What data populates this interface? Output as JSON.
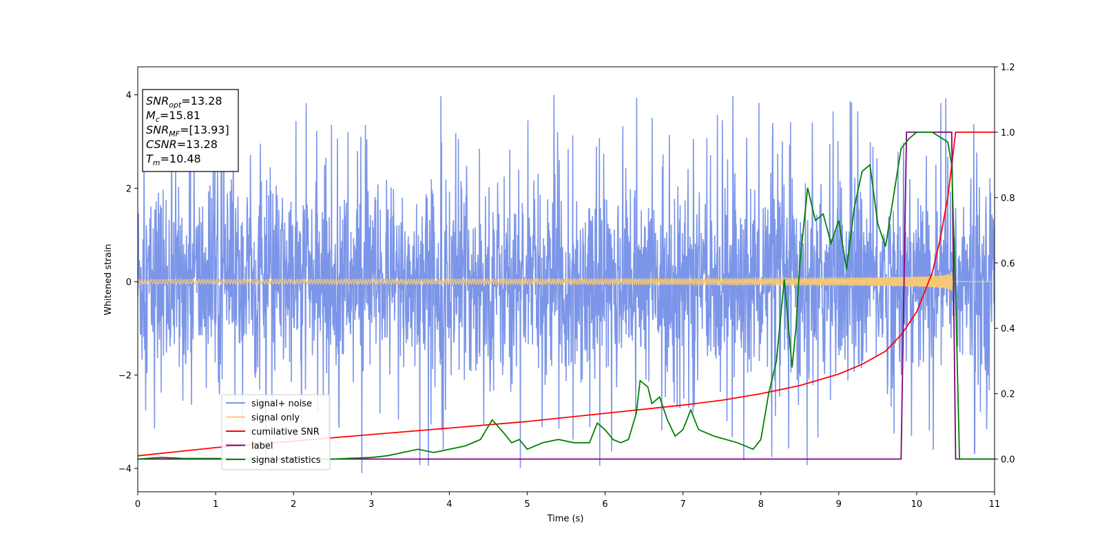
{
  "chart_data": {
    "type": "line",
    "xlabel": "Time (s)",
    "ylabel": "Whitened strain",
    "xlim": [
      0,
      11
    ],
    "ylim": [
      -4.5,
      4.6
    ],
    "y2lim": [
      -0.1,
      1.2
    ],
    "xticks": [
      0,
      1,
      2,
      3,
      4,
      5,
      6,
      7,
      8,
      9,
      10,
      11
    ],
    "yticks": [
      -4,
      -2,
      0,
      2,
      4
    ],
    "y2ticks": [
      "0.0",
      "0.2",
      "0.4",
      "0.6",
      "0.8",
      "1.0",
      "1.2"
    ],
    "grid": false,
    "legend_position": "lower-left",
    "info_box": {
      "lines": [
        {
          "sym": "SNR",
          "sub": "opt",
          "text": "=13.28"
        },
        {
          "sym": "M",
          "sub": "c",
          "text": "=15.81"
        },
        {
          "sym": "SNR",
          "sub": "MF",
          "text": "=[13.93]"
        },
        {
          "sym": "CSNR",
          "sub": "",
          "text": "=13.28"
        },
        {
          "sym": "T",
          "sub": "m",
          "text": "=10.48"
        }
      ]
    },
    "series": [
      {
        "name": "signal+ noise",
        "color": "#7b95e8",
        "axis": "left",
        "kind": "noise",
        "amplitude": 3.9
      },
      {
        "name": "signal only",
        "color": "#f5c878",
        "axis": "left",
        "kind": "chirp",
        "merger_time": 10.48
      },
      {
        "name": "cumilative SNR",
        "color": "#ff0000",
        "axis": "right",
        "x": [
          0,
          1,
          2,
          3,
          4,
          5,
          6,
          7,
          7.5,
          8,
          8.5,
          9,
          9.3,
          9.6,
          9.8,
          10.0,
          10.2,
          10.3,
          10.4,
          10.45,
          10.5,
          11
        ],
        "y": [
          0.01,
          0.035,
          0.055,
          0.075,
          0.095,
          0.115,
          0.14,
          0.165,
          0.18,
          0.2,
          0.225,
          0.26,
          0.29,
          0.33,
          0.38,
          0.45,
          0.57,
          0.67,
          0.8,
          0.9,
          1.0,
          1.0
        ]
      },
      {
        "name": "label",
        "color": "#800080",
        "axis": "right",
        "x": [
          0,
          9.8,
          9.87,
          10.45,
          10.5,
          11
        ],
        "y": [
          0,
          0,
          1,
          1,
          0,
          0
        ]
      },
      {
        "name": "signal statistics",
        "color": "#008000",
        "axis": "right",
        "x": [
          0,
          0.3,
          0.6,
          1,
          1.5,
          2,
          2.5,
          2.8,
          3,
          3.2,
          3.4,
          3.6,
          3.8,
          4,
          4.2,
          4.4,
          4.5,
          4.55,
          4.7,
          4.8,
          4.9,
          5,
          5.2,
          5.4,
          5.6,
          5.8,
          5.9,
          6,
          6.1,
          6.2,
          6.3,
          6.4,
          6.45,
          6.55,
          6.6,
          6.7,
          6.8,
          6.9,
          7,
          7.1,
          7.2,
          7.4,
          7.7,
          7.9,
          8,
          8.1,
          8.2,
          8.3,
          8.4,
          8.45,
          8.5,
          8.6,
          8.7,
          8.8,
          8.9,
          9,
          9.1,
          9.2,
          9.3,
          9.4,
          9.5,
          9.6,
          9.7,
          9.8,
          9.9,
          10,
          10.2,
          10.4,
          10.45,
          10.5,
          10.55,
          11
        ],
        "y": [
          0,
          0.005,
          0.002,
          0.002,
          0.0,
          0.002,
          0.0,
          0.003,
          0.005,
          0.01,
          0.02,
          0.03,
          0.02,
          0.03,
          0.04,
          0.06,
          0.1,
          0.12,
          0.08,
          0.05,
          0.06,
          0.03,
          0.05,
          0.06,
          0.05,
          0.05,
          0.11,
          0.09,
          0.06,
          0.05,
          0.06,
          0.14,
          0.24,
          0.22,
          0.17,
          0.19,
          0.12,
          0.07,
          0.09,
          0.15,
          0.09,
          0.07,
          0.05,
          0.03,
          0.06,
          0.2,
          0.3,
          0.55,
          0.28,
          0.4,
          0.6,
          0.83,
          0.73,
          0.75,
          0.66,
          0.73,
          0.58,
          0.77,
          0.88,
          0.9,
          0.72,
          0.65,
          0.8,
          0.95,
          0.98,
          1.0,
          1.0,
          0.97,
          0.9,
          0.5,
          0.0,
          0.0
        ]
      }
    ]
  }
}
